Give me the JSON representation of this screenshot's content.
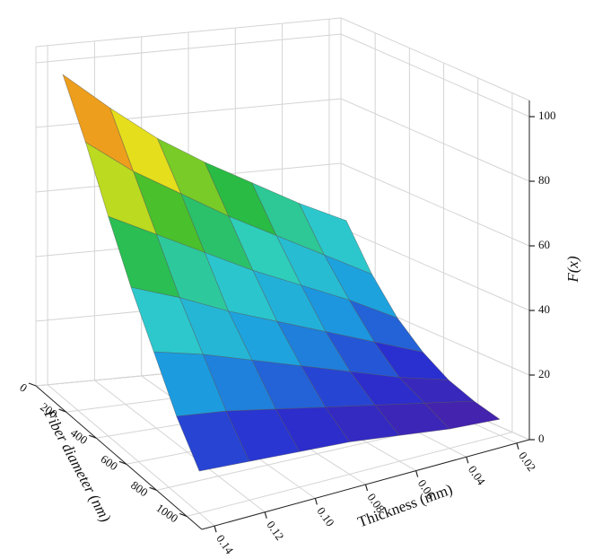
{
  "chart_data": {
    "type": "surface",
    "x_label": "Thickness (mm)",
    "y_label": "Fiber diameter (nm)",
    "z_label": "F(x)",
    "x": [
      0.02,
      0.04,
      0.06,
      0.08,
      0.1,
      0.12,
      0.14
    ],
    "y": [
      100,
      250,
      400,
      550,
      700,
      850,
      1000
    ],
    "z": [
      [
        45,
        52,
        60,
        68,
        77,
        88,
        100
      ],
      [
        32,
        40,
        48,
        56,
        65,
        74,
        85
      ],
      [
        22,
        30,
        37,
        44,
        52,
        60,
        68
      ],
      [
        15,
        21,
        27,
        33,
        39,
        46,
        52
      ],
      [
        10,
        14,
        19,
        24,
        29,
        34,
        38
      ],
      [
        7,
        10,
        13,
        16,
        19,
        22,
        24
      ],
      [
        5,
        6,
        8,
        10,
        11,
        12,
        13
      ]
    ],
    "xlim": [
      0.145,
      0.015
    ],
    "ylim": [
      0,
      1100
    ],
    "zlim": [
      0,
      105
    ],
    "xticks": [
      0.02,
      0.04,
      0.06,
      0.08,
      {
        "value": 0.1,
        "label": "0.10"
      },
      0.12,
      0.14
    ],
    "yticks": [
      0,
      200,
      400,
      600,
      800,
      1000
    ],
    "zticks": [
      0,
      20,
      40,
      60,
      80,
      100
    ],
    "colormap": [
      "#5a1890",
      "#2a2fd0",
      "#1c9fe0",
      "#2fd0c8",
      "#28b830",
      "#e4e41c",
      "#f08a1c",
      "#d81414"
    ],
    "grid": true
  }
}
